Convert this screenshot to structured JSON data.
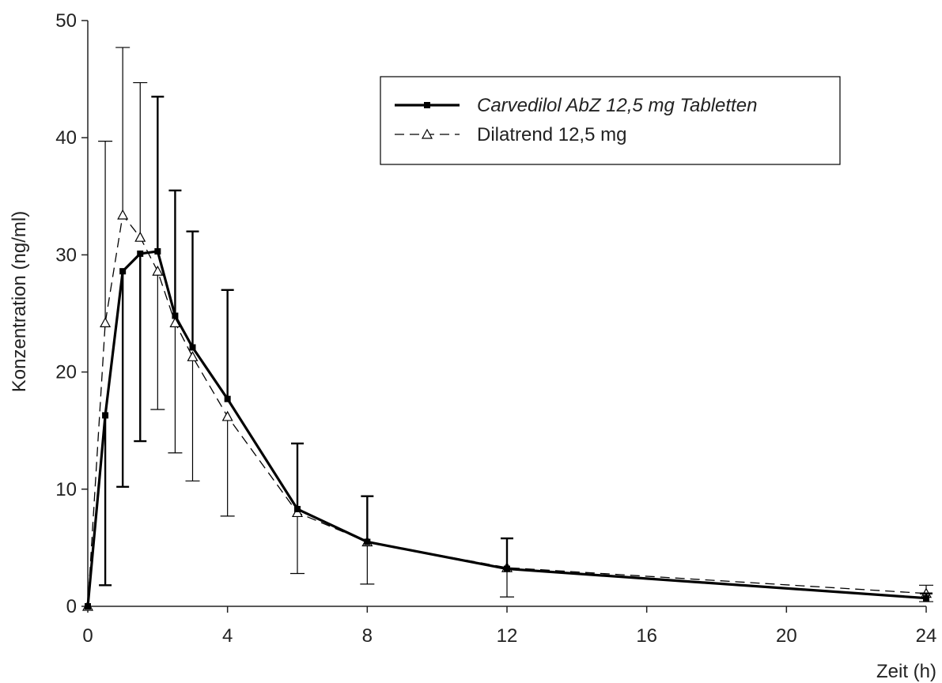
{
  "chart_data": {
    "type": "line",
    "xlabel": "Zeit (h)",
    "ylabel": "Konzentration  (ng/ml)",
    "xlim": [
      0,
      24
    ],
    "ylim": [
      0,
      50
    ],
    "x_ticks": [
      0,
      4,
      8,
      12,
      16,
      20,
      24
    ],
    "y_ticks": [
      0,
      10,
      20,
      30,
      40,
      50
    ],
    "grid": false,
    "legend_position": "top-right",
    "series": [
      {
        "name": "Carvedilol AbZ 12,5 mg Tabletten",
        "style": "solid-bold",
        "marker": "filled-square",
        "color": "#000000",
        "x": [
          0,
          0.5,
          1,
          1.5,
          2,
          2.5,
          3,
          4,
          6,
          8,
          12,
          24
        ],
        "y": [
          0,
          16.3,
          28.6,
          30.1,
          30.3,
          24.8,
          22.1,
          17.7,
          8.3,
          5.5,
          3.2,
          0.7
        ],
        "error_upper": [
          0,
          16.3,
          28.6,
          30.1,
          43.5,
          35.5,
          32.0,
          27.0,
          13.9,
          9.4,
          5.8,
          1.1
        ],
        "error_lower": [
          0,
          1.8,
          10.2,
          14.1,
          30.3,
          24.8,
          22.1,
          17.7,
          8.3,
          5.5,
          3.2,
          0.7
        ]
      },
      {
        "name": "Dilatrend 12,5 mg",
        "style": "dashed",
        "marker": "open-triangle",
        "color": "#000000",
        "x": [
          0,
          0.5,
          1,
          1.5,
          2,
          2.5,
          3,
          4,
          6,
          8,
          12,
          24
        ],
        "y": [
          0,
          24.2,
          33.4,
          31.5,
          28.6,
          24.2,
          21.3,
          16.2,
          8.0,
          5.5,
          3.3,
          1.1
        ],
        "error_upper": [
          0,
          39.7,
          47.7,
          44.7,
          28.6,
          24.2,
          21.3,
          16.2,
          8.0,
          5.5,
          3.3,
          1.8
        ],
        "error_lower": [
          0,
          24.2,
          33.4,
          31.5,
          16.8,
          13.1,
          10.7,
          7.7,
          2.8,
          1.9,
          0.8,
          0.4
        ]
      }
    ]
  }
}
